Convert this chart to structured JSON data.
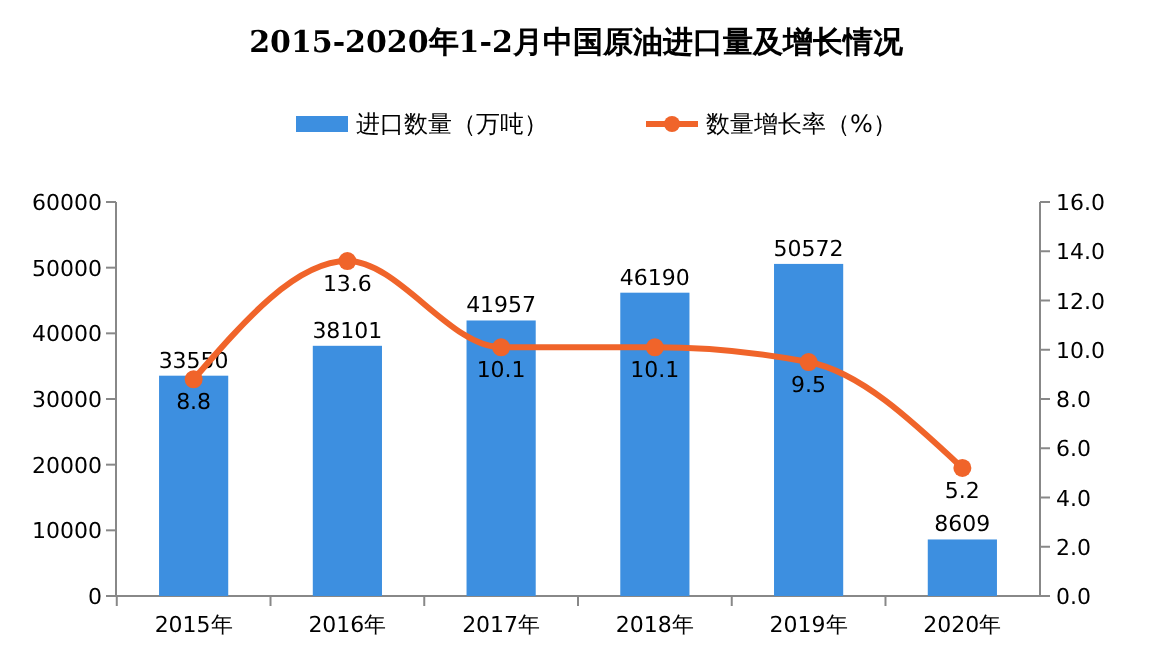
{
  "chart_data": {
    "type": "bar",
    "title": "2015-2020年1-2月中国原油进口量及增长情况",
    "categories": [
      "2015年",
      "2016年",
      "2017年",
      "2018年",
      "2019年",
      "2020年"
    ],
    "series": [
      {
        "name": "进口数量（万吨）",
        "color": "#3d8fe0",
        "values": [
          33550,
          38101,
          41957,
          46190,
          50572,
          8609
        ]
      },
      {
        "name": "数量增长率（%）",
        "type": "line",
        "axis": "y2",
        "color": "#f0642a",
        "marker": "circle",
        "values": [
          8.8,
          13.6,
          10.1,
          10.1,
          9.5,
          5.2
        ]
      }
    ],
    "ylim": [
      0,
      60000
    ],
    "yticks": [
      0,
      10000,
      20000,
      30000,
      40000,
      50000,
      60000
    ],
    "y2lim": [
      0,
      16
    ],
    "y2ticks": [
      "0.0",
      "2.0",
      "4.0",
      "6.0",
      "8.0",
      "10.0",
      "12.0",
      "14.0",
      "16.0"
    ],
    "data_labels": true,
    "legend": "top",
    "grid": false
  }
}
